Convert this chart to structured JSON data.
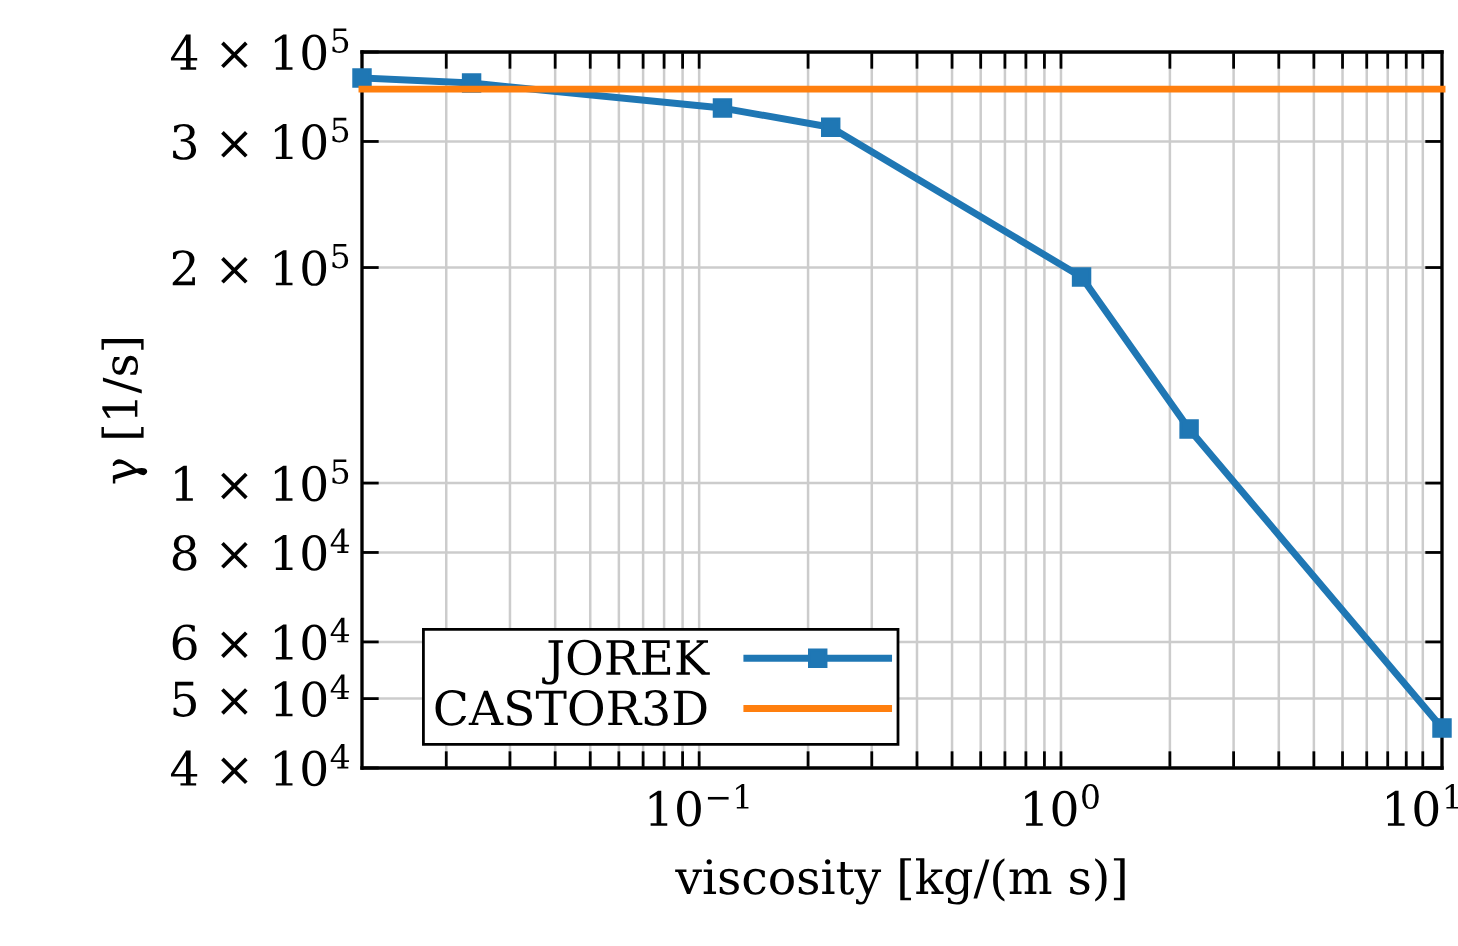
{
  "chart_data": {
    "type": "line",
    "xlabel": "viscosity [kg/(m s)]",
    "ylabel": "γ [1/s]",
    "log": "xy",
    "grid": true,
    "legend": "bottom left",
    "xlim": [
      0.0117,
      11.3
    ],
    "ylim": [
      40000,
      400000
    ],
    "xticks": [
      {
        "value": 0.1,
        "label": "10$^{−1}$"
      },
      {
        "value": 1,
        "label": "10$^{0}$"
      },
      {
        "value": 10,
        "label": "10$^{1}$"
      },
      {
        "value": 0.02,
        "label": null
      },
      {
        "value": 0.03,
        "label": null
      },
      {
        "value": 0.04,
        "label": null
      },
      {
        "value": 0.05,
        "label": null
      },
      {
        "value": 0.06,
        "label": null
      },
      {
        "value": 0.07,
        "label": null
      },
      {
        "value": 0.08,
        "label": null
      },
      {
        "value": 0.09,
        "label": null
      },
      {
        "value": 0.2,
        "label": null
      },
      {
        "value": 0.3,
        "label": null
      },
      {
        "value": 0.4,
        "label": null
      },
      {
        "value": 0.5,
        "label": null
      },
      {
        "value": 0.6,
        "label": null
      },
      {
        "value": 0.7,
        "label": null
      },
      {
        "value": 0.8,
        "label": null
      },
      {
        "value": 0.9,
        "label": null
      },
      {
        "value": 2,
        "label": null
      },
      {
        "value": 3,
        "label": null
      },
      {
        "value": 4,
        "label": null
      },
      {
        "value": 5,
        "label": null
      },
      {
        "value": 6,
        "label": null
      },
      {
        "value": 7,
        "label": null
      },
      {
        "value": 8,
        "label": null
      },
      {
        "value": 9,
        "label": null
      }
    ],
    "yticks": [
      {
        "value": 40000,
        "label": "4 × 10$^{4}$"
      },
      {
        "value": 50000,
        "label": "5 × 10$^{4}$"
      },
      {
        "value": 60000,
        "label": "6 × 10$^{4}$"
      },
      {
        "value": 80000,
        "label": "8 × 10$^{4}$"
      },
      {
        "value": 100000,
        "label": "1 × 10$^{5}$"
      },
      {
        "value": 200000,
        "label": "2 × 10$^{5}$"
      },
      {
        "value": 300000,
        "label": "3 × 10$^{5}$"
      },
      {
        "value": 400000,
        "label": "4 × 10$^{5}$"
      }
    ],
    "series": [
      {
        "name": "JOREK",
        "color": "#1f77b4",
        "marker": "square",
        "x": [
          0.0117,
          0.0235,
          0.116,
          0.231,
          1.14,
          2.26,
          11.3
        ],
        "values": [
          368000,
          362000,
          334000,
          314000,
          194000,
          119000,
          45500
        ]
      },
      {
        "name": "CASTOR3D",
        "color": "#ff7f0e",
        "marker": "none",
        "x": [
          0.0117,
          11.3
        ],
        "values": [
          355000,
          355000
        ]
      }
    ]
  }
}
